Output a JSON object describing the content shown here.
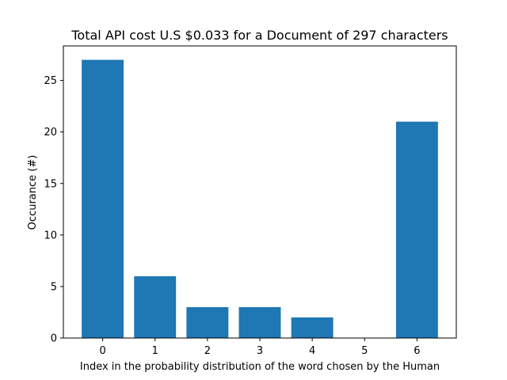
{
  "chart_data": {
    "type": "bar",
    "title": "Total API cost U.S $0.033 for a Document of 297 characters",
    "xlabel": "Index in the probability distribution of the word chosen by the Human",
    "ylabel": "Occurance (#)",
    "categories": [
      "0",
      "1",
      "2",
      "3",
      "4",
      "5",
      "6"
    ],
    "values": [
      27,
      6,
      3,
      3,
      2,
      0,
      21
    ],
    "ylim": [
      0,
      28.35
    ],
    "yticks": [
      0,
      5,
      10,
      15,
      20,
      25
    ],
    "bar_color": "#1f77b4",
    "grid": false,
    "legend": "none"
  }
}
